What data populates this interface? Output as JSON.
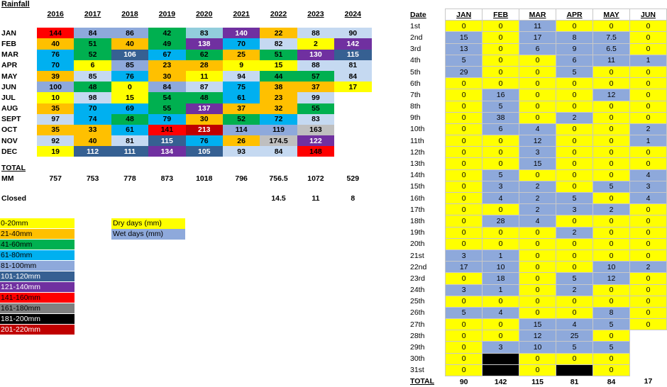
{
  "title": "Rainfall",
  "years": [
    "2016",
    "2017",
    "2018",
    "2019",
    "2020",
    "2021",
    "2022",
    "2023",
    "2024"
  ],
  "left_rows": [
    {
      "label": "JAN",
      "values": [
        "144",
        "84",
        "86",
        "42",
        "83",
        "140",
        "22",
        "88",
        "90"
      ],
      "colors": [
        "#ff0000",
        "#8ea9db",
        "#8ea9db",
        "#00b050",
        "#92cddc",
        "#7030a0",
        "#ffc000",
        "#c5d9f1",
        "#c5d9f1"
      ]
    },
    {
      "label": "FEB",
      "values": [
        "40",
        "51",
        "40",
        "49",
        "138",
        "70",
        "82",
        "2",
        "142"
      ],
      "colors": [
        "#ffc000",
        "#00b050",
        "#ffc000",
        "#00b050",
        "#7030a0",
        "#00b0f0",
        "#c5d9f1",
        "#ffff00",
        "#7030a0"
      ]
    },
    {
      "label": "MAR",
      "values": [
        "76",
        "52",
        "106",
        "67",
        "62",
        "25",
        "51",
        "130",
        "115"
      ],
      "colors": [
        "#00b0f0",
        "#00b050",
        "#366092",
        "#00b0f0",
        "#00b050",
        "#ffc000",
        "#00b050",
        "#7030a0",
        "#366092"
      ]
    },
    {
      "label": "APR",
      "values": [
        "70",
        "6",
        "85",
        "23",
        "28",
        "9",
        "15",
        "88",
        "81"
      ],
      "colors": [
        "#00b0f0",
        "#ffff00",
        "#8ea9db",
        "#ffc000",
        "#ffc000",
        "#ffff00",
        "#ffff00",
        "#c5d9f1",
        "#c5d9f1"
      ]
    },
    {
      "label": "MAY",
      "values": [
        "39",
        "85",
        "76",
        "30",
        "11",
        "94",
        "44",
        "57",
        "84"
      ],
      "colors": [
        "#ffc000",
        "#c5d9f1",
        "#00b0f0",
        "#ffc000",
        "#ffff00",
        "#c5d9f1",
        "#00b050",
        "#00b050",
        "#c5d9f1"
      ]
    },
    {
      "label": "JUN",
      "values": [
        "100",
        "48",
        "0",
        "84",
        "87",
        "75",
        "38",
        "37",
        "17"
      ],
      "colors": [
        "#8ea9db",
        "#00b050",
        "#ffff00",
        "#8ea9db",
        "#c5d9f1",
        "#00b0f0",
        "#ffc000",
        "#ffc000",
        "#ffff00"
      ]
    },
    {
      "label": "JUL",
      "values": [
        "10",
        "98",
        "15",
        "54",
        "48",
        "61",
        "23",
        "99",
        ""
      ],
      "colors": [
        "#ffff00",
        "#c5d9f1",
        "#ffff00",
        "#00b050",
        "#00b050",
        "#00b0f0",
        "#ffc000",
        "#c5d9f1",
        "#ffffff"
      ]
    },
    {
      "label": "AUG",
      "values": [
        "35",
        "70",
        "69",
        "55",
        "137",
        "37",
        "32",
        "55",
        ""
      ],
      "colors": [
        "#ffc000",
        "#00b0f0",
        "#00b0f0",
        "#00b050",
        "#7030a0",
        "#ffc000",
        "#ffc000",
        "#00b050",
        "#ffffff"
      ]
    },
    {
      "label": "SEPT",
      "values": [
        "97",
        "74",
        "48",
        "79",
        "30",
        "52",
        "72",
        "83",
        ""
      ],
      "colors": [
        "#c5d9f1",
        "#00b0f0",
        "#00b050",
        "#00b0f0",
        "#ffc000",
        "#00b050",
        "#00b0f0",
        "#c5d9f1",
        "#ffffff"
      ]
    },
    {
      "label": "OCT",
      "values": [
        "35",
        "33",
        "61",
        "141",
        "213",
        "114",
        "119",
        "163",
        ""
      ],
      "colors": [
        "#ffc000",
        "#ffc000",
        "#00b0f0",
        "#ff0000",
        "#c00000",
        "#8ea9db",
        "#8ea9db",
        "#bfbfbf",
        "#ffffff"
      ]
    },
    {
      "label": "NOV",
      "values": [
        "92",
        "40",
        "81",
        "115",
        "76",
        "26",
        "174.5",
        "122",
        ""
      ],
      "colors": [
        "#c5d9f1",
        "#ffc000",
        "#c5d9f1",
        "#366092",
        "#00b0f0",
        "#ffc000",
        "#bfbfbf",
        "#7030a0",
        "#ffffff"
      ]
    },
    {
      "label": "DEC",
      "values": [
        "19",
        "112",
        "111",
        "134",
        "105",
        "93",
        "84",
        "148",
        ""
      ],
      "colors": [
        "#ffff00",
        "#366092",
        "#366092",
        "#7030a0",
        "#366092",
        "#c5d9f1",
        "#c5d9f1",
        "#ff0000",
        "#ffffff"
      ]
    }
  ],
  "total_label": "TOTAL",
  "mm_label": "MM",
  "mm_values": [
    "757",
    "753",
    "778",
    "873",
    "1018",
    "796",
    "756.5",
    "1072",
    "529"
  ],
  "closed_label": "Closed",
  "closed_values": [
    "",
    "",
    "",
    "",
    "",
    "",
    "14.5",
    "11",
    "8"
  ],
  "legend": [
    {
      "label": "0-20mm",
      "color": "#ffff00",
      "text": "#000000"
    },
    {
      "label": "21-40mm",
      "color": "#ffc000",
      "text": "#000000"
    },
    {
      "label": "41-60mm",
      "color": "#00b050",
      "text": "#000000"
    },
    {
      "label": "61-80mm",
      "color": "#00b0f0",
      "text": "#000000"
    },
    {
      "label": "81-100mm",
      "color": "#8ea9db",
      "text": "#000000"
    },
    {
      "label": "101-120mm",
      "color": "#366092",
      "text": "#ffffff"
    },
    {
      "label": "121-140mm",
      "color": "#7030a0",
      "text": "#ffffff"
    },
    {
      "label": "141-160mm",
      "color": "#ff0000",
      "text": "#000000"
    },
    {
      "label": "161-180mm",
      "color": "#808080",
      "text": "#000000"
    },
    {
      "label": "181-200mm",
      "color": "#000000",
      "text": "#ffffff"
    },
    {
      "label": "201-220mm",
      "color": "#c00000",
      "text": "#ffffff"
    }
  ],
  "day_legend": [
    {
      "label": "Dry days   (mm)",
      "color": "#ffff00"
    },
    {
      "label": "Wet days   (mm)",
      "color": "#8ea9db"
    }
  ],
  "daily": {
    "date_label": "Date",
    "months": [
      "JAN",
      "FEB",
      "MAR",
      "APR",
      "MAY",
      "JUN"
    ],
    "rows": [
      {
        "day": "1st",
        "v": [
          "0",
          "0",
          "11",
          "0",
          "0",
          "0"
        ]
      },
      {
        "day": "2nd",
        "v": [
          "15",
          "0",
          "17",
          "8",
          "7.5",
          "0"
        ]
      },
      {
        "day": "3rd",
        "v": [
          "13",
          "0",
          "6",
          "9",
          "6.5",
          "0"
        ]
      },
      {
        "day": "4th",
        "v": [
          "5",
          "0",
          "0",
          "6",
          "11",
          "1"
        ]
      },
      {
        "day": "5th",
        "v": [
          "29",
          "0",
          "0",
          "5",
          "0",
          "0"
        ]
      },
      {
        "day": "6th",
        "v": [
          "0",
          "0",
          "0",
          "0",
          "0",
          "0"
        ]
      },
      {
        "day": "7th",
        "v": [
          "0",
          "16",
          "0",
          "0",
          "12",
          "0"
        ]
      },
      {
        "day": "8th",
        "v": [
          "0",
          "5",
          "0",
          "0",
          "0",
          "0"
        ]
      },
      {
        "day": "9th",
        "v": [
          "0",
          "38",
          "0",
          "2",
          "0",
          "0"
        ]
      },
      {
        "day": "10th",
        "v": [
          "0",
          "6",
          "4",
          "0",
          "0",
          "2"
        ]
      },
      {
        "day": "11th",
        "v": [
          "0",
          "0",
          "12",
          "0",
          "0",
          "1"
        ]
      },
      {
        "day": "12th",
        "v": [
          "0",
          "0",
          "3",
          "0",
          "0",
          "0"
        ]
      },
      {
        "day": "13th",
        "v": [
          "0",
          "0",
          "15",
          "0",
          "0",
          "0"
        ]
      },
      {
        "day": "14th",
        "v": [
          "0",
          "5",
          "0",
          "0",
          "0",
          "4"
        ]
      },
      {
        "day": "15th",
        "v": [
          "0",
          "3",
          "2",
          "0",
          "5",
          "3"
        ]
      },
      {
        "day": "16th",
        "v": [
          "0",
          "4",
          "2",
          "5",
          "0",
          "4"
        ]
      },
      {
        "day": "17th",
        "v": [
          "0",
          "0",
          "2",
          "3",
          "2",
          "0"
        ]
      },
      {
        "day": "18th",
        "v": [
          "0",
          "28",
          "4",
          "0",
          "0",
          "0"
        ]
      },
      {
        "day": "19th",
        "v": [
          "0",
          "0",
          "0",
          "2",
          "0",
          "0"
        ]
      },
      {
        "day": "20th",
        "v": [
          "0",
          "0",
          "0",
          "0",
          "0",
          "0"
        ]
      },
      {
        "day": "21st",
        "v": [
          "3",
          "1",
          "0",
          "0",
          "0",
          "0"
        ]
      },
      {
        "day": "22nd",
        "v": [
          "17",
          "10",
          "0",
          "0",
          "10",
          "2"
        ]
      },
      {
        "day": "23rd",
        "v": [
          "0",
          "18",
          "0",
          "5",
          "12",
          "0"
        ]
      },
      {
        "day": "24th",
        "v": [
          "3",
          "1",
          "0",
          "2",
          "0",
          "0"
        ]
      },
      {
        "day": "25th",
        "v": [
          "0",
          "0",
          "0",
          "0",
          "0",
          "0"
        ]
      },
      {
        "day": "26th",
        "v": [
          "5",
          "4",
          "0",
          "0",
          "8",
          "0"
        ]
      },
      {
        "day": "27th",
        "v": [
          "0",
          "0",
          "15",
          "4",
          "5",
          "0"
        ]
      },
      {
        "day": "28th",
        "v": [
          "0",
          "0",
          "12",
          "25",
          "0",
          ""
        ]
      },
      {
        "day": "29th",
        "v": [
          "0",
          "3",
          "10",
          "5",
          "5",
          ""
        ]
      },
      {
        "day": "30th",
        "v": [
          "0",
          "",
          "0",
          "0",
          "0",
          ""
        ]
      },
      {
        "day": "31st",
        "v": [
          "0",
          "",
          "0",
          "",
          "0",
          ""
        ]
      }
    ],
    "colors": [
      [
        "Y",
        "Y",
        "B",
        "Y",
        "Y",
        "Y"
      ],
      [
        "B",
        "Y",
        "B",
        "B",
        "B",
        "Y"
      ],
      [
        "B",
        "Y",
        "B",
        "B",
        "B",
        "Y"
      ],
      [
        "B",
        "Y",
        "Y",
        "B",
        "B",
        "B"
      ],
      [
        "B",
        "Y",
        "Y",
        "B",
        "Y",
        "Y"
      ],
      [
        "Y",
        "Y",
        "Y",
        "Y",
        "Y",
        "Y"
      ],
      [
        "Y",
        "B",
        "Y",
        "Y",
        "B",
        "Y"
      ],
      [
        "Y",
        "B",
        "Y",
        "Y",
        "Y",
        "Y"
      ],
      [
        "Y",
        "B",
        "Y",
        "B",
        "Y",
        "Y"
      ],
      [
        "Y",
        "B",
        "B",
        "Y",
        "Y",
        "B"
      ],
      [
        "Y",
        "Y",
        "B",
        "Y",
        "Y",
        "B"
      ],
      [
        "Y",
        "Y",
        "B",
        "Y",
        "Y",
        "Y"
      ],
      [
        "Y",
        "Y",
        "B",
        "Y",
        "Y",
        "Y"
      ],
      [
        "Y",
        "B",
        "Y",
        "Y",
        "Y",
        "B"
      ],
      [
        "Y",
        "B",
        "B",
        "Y",
        "B",
        "B"
      ],
      [
        "Y",
        "B",
        "B",
        "B",
        "Y",
        "B"
      ],
      [
        "Y",
        "Y",
        "B",
        "B",
        "B",
        "Y"
      ],
      [
        "Y",
        "B",
        "B",
        "Y",
        "Y",
        "Y"
      ],
      [
        "Y",
        "Y",
        "Y",
        "B",
        "Y",
        "Y"
      ],
      [
        "Y",
        "Y",
        "Y",
        "Y",
        "Y",
        "Y"
      ],
      [
        "B",
        "B",
        "Y",
        "Y",
        "Y",
        "Y"
      ],
      [
        "B",
        "B",
        "Y",
        "Y",
        "B",
        "B"
      ],
      [
        "Y",
        "B",
        "Y",
        "B",
        "B",
        "Y"
      ],
      [
        "B",
        "B",
        "Y",
        "B",
        "Y",
        "Y"
      ],
      [
        "Y",
        "Y",
        "Y",
        "Y",
        "Y",
        "Y"
      ],
      [
        "B",
        "B",
        "Y",
        "Y",
        "B",
        "Y"
      ],
      [
        "Y",
        "Y",
        "B",
        "B",
        "B",
        "Y"
      ],
      [
        "Y",
        "Y",
        "B",
        "B",
        "Y",
        "W"
      ],
      [
        "Y",
        "B",
        "B",
        "B",
        "B",
        "W"
      ],
      [
        "Y",
        "K",
        "Y",
        "Y",
        "Y",
        "W"
      ],
      [
        "Y",
        "K",
        "Y",
        "K",
        "Y",
        "W"
      ]
    ],
    "total_label": "TOTAL",
    "totals": [
      "90",
      "142",
      "115",
      "81",
      "84",
      "17"
    ]
  },
  "palette": {
    "Y": "#ffff00",
    "B": "#8ea9db",
    "W": "#ffffff",
    "K": "#000000"
  }
}
